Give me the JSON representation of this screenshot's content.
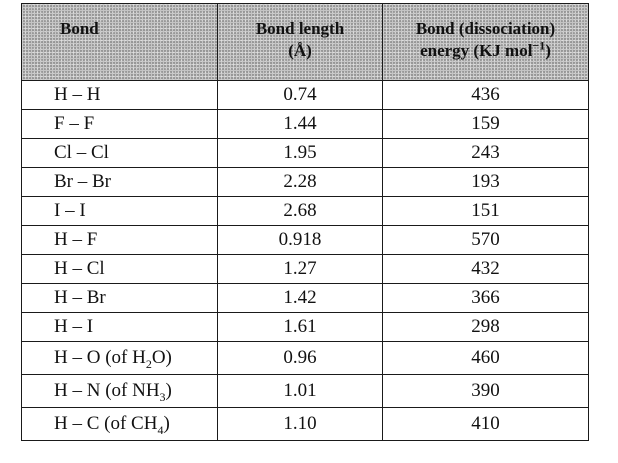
{
  "headers": {
    "bond": "Bond",
    "length_line1": "Bond length",
    "length_line2": "(Å)",
    "energy_line1": "Bond (dissociation)",
    "energy_line2_pre": "energy (KJ mol",
    "energy_line2_sup": "−1",
    "energy_line2_post": ")"
  },
  "rows": [
    {
      "bond": "H – H",
      "length": "0.74",
      "energy": "436"
    },
    {
      "bond": "F – F",
      "length": "1.44",
      "energy": "159"
    },
    {
      "bond": "Cl – Cl",
      "length": "1.95",
      "energy": "243"
    },
    {
      "bond": "Br – Br",
      "length": "2.28",
      "energy": "193"
    },
    {
      "bond": "I – I",
      "length": "2.68",
      "energy": "151"
    },
    {
      "bond": "H – F",
      "length": "0.918",
      "energy": "570"
    },
    {
      "bond": "H – Cl",
      "length": "1.27",
      "energy": "432"
    },
    {
      "bond": "H – Br",
      "length": "1.42",
      "energy": "366"
    },
    {
      "bond": "H – I",
      "length": "1.61",
      "energy": "298"
    },
    {
      "bond_pre": "H – O (of H",
      "bond_sub": "2",
      "bond_post": "O)",
      "length": "0.96",
      "energy": "460"
    },
    {
      "bond_pre": "H – N (of NH",
      "bond_sub": "3",
      "bond_post": ")",
      "length": "1.01",
      "energy": "390"
    },
    {
      "bond_pre": "H – C (of CH",
      "bond_sub": "4",
      "bond_post": ")",
      "length": "1.10",
      "energy": "410"
    }
  ]
}
